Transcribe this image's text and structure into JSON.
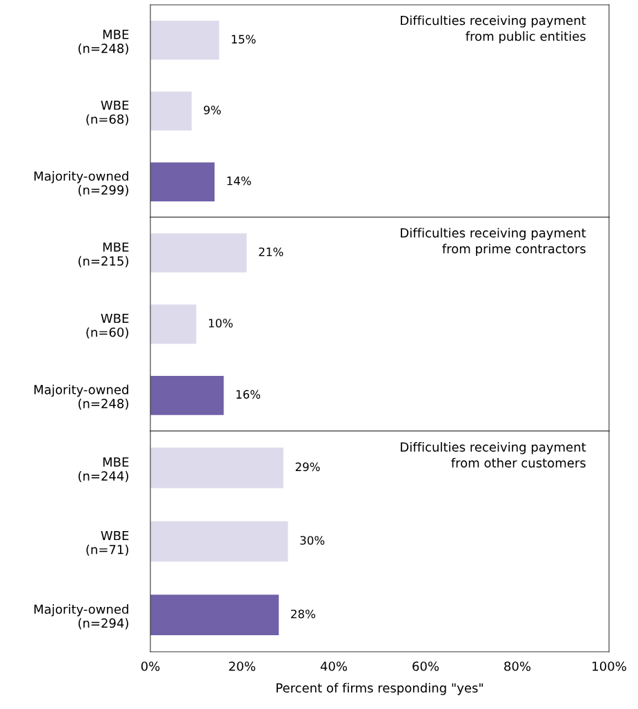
{
  "chart_data": [
    {
      "type": "bar",
      "orientation": "horizontal",
      "categories": [
        "MBE\n(n=248)",
        "WBE\n(n=68)",
        "Majority-owned\n(n=299)"
      ],
      "values": [
        15,
        9,
        14
      ],
      "colors": [
        "#dddbeb",
        "#dddbeb",
        "#7161a8"
      ],
      "value_labels": [
        "15%",
        "9%",
        "14%"
      ],
      "annotations": [
        "Difficulties receiving payment\nfrom public entities"
      ],
      "xlim": [
        0,
        100
      ],
      "tick_labels": "y",
      "grid": false,
      "legend": false
    },
    {
      "type": "bar",
      "orientation": "horizontal",
      "categories": [
        "MBE\n(n=215)",
        "WBE\n(n=60)",
        "Majority-owned\n(n=248)"
      ],
      "values": [
        21,
        10,
        16
      ],
      "colors": [
        "#dddbeb",
        "#dddbeb",
        "#7161a8"
      ],
      "value_labels": [
        "21%",
        "10%",
        "16%"
      ],
      "annotations": [
        "Difficulties receiving payment\nfrom prime contractors"
      ],
      "xlim": [
        0,
        100
      ],
      "tick_labels": "y",
      "grid": false,
      "legend": false
    },
    {
      "type": "bar",
      "orientation": "horizontal",
      "categories": [
        "MBE\n(n=244)",
        "WBE\n(n=71)",
        "Majority-owned\n(n=294)"
      ],
      "values": [
        29,
        30,
        28
      ],
      "colors": [
        "#dddbeb",
        "#dddbeb",
        "#7161a8"
      ],
      "value_labels": [
        "29%",
        "30%",
        "28%"
      ],
      "annotations": [
        "Difficulties receiving payment\nfrom other customers"
      ],
      "xlabel": "Percent of firms responding \"yes\"",
      "xlim": [
        0,
        100
      ],
      "xticks": [
        {
          "value": 0,
          "label": "0%"
        },
        {
          "value": 20,
          "label": "20%"
        },
        {
          "value": 40,
          "label": "40%"
        },
        {
          "value": 60,
          "label": "60%"
        },
        {
          "value": 80,
          "label": "80%"
        },
        {
          "value": 100,
          "label": "100%"
        }
      ],
      "grid": false,
      "legend": false
    }
  ]
}
